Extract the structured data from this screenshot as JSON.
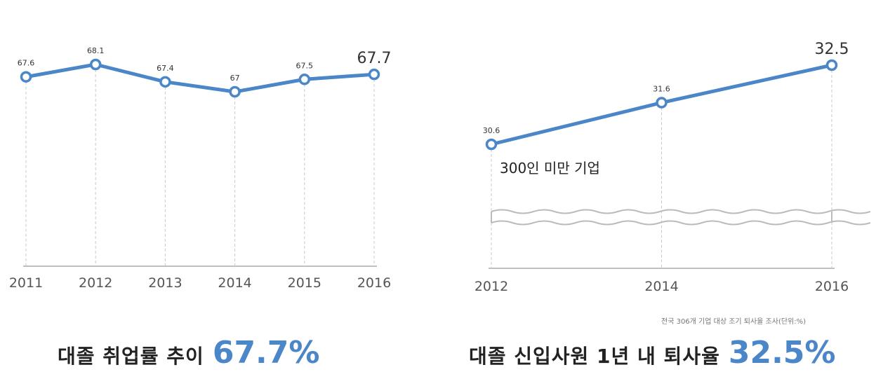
{
  "chart_data": [
    {
      "type": "line",
      "title": "대졸 취업률 추이",
      "headline_value": "67.7%",
      "categories": [
        "2011",
        "2012",
        "2013",
        "2014",
        "2015",
        "2016"
      ],
      "values": [
        67.6,
        68.1,
        67.4,
        67,
        67.5,
        67.7
      ],
      "value_labels": [
        "67.6",
        "68.1",
        "67.4",
        "67",
        "67.5",
        "67.7"
      ],
      "grid": "vertical-dashed",
      "line_color": "#4a86c8"
    },
    {
      "type": "line",
      "title": "대졸 신입사원 1년 내 퇴사율",
      "headline_value": "32.5%",
      "series_label": "300인 미만 기업",
      "axis_break": true,
      "categories": [
        "2012",
        "2014",
        "2016"
      ],
      "values": [
        30.6,
        31.6,
        32.5
      ],
      "value_labels": [
        "30.6",
        "31.6",
        "32.5"
      ],
      "note": "전국 306개 기업 대상 조기 퇴사율 조사(단위:%)",
      "grid": "vertical-dashed",
      "line_color": "#4a86c8"
    }
  ]
}
